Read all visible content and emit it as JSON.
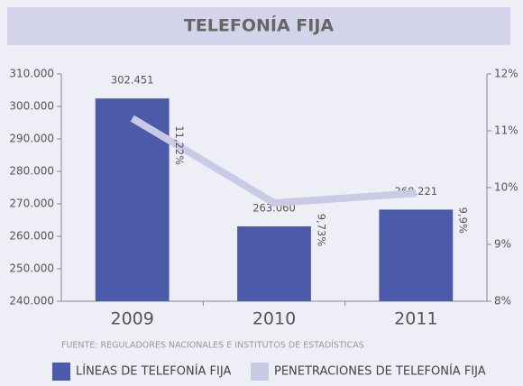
{
  "chart_data": {
    "type": "bar",
    "title": "TELEFONÍA FIJA",
    "categories": [
      "2009",
      "2010",
      "2011"
    ],
    "series": [
      {
        "name": "LÍNEAS DE TELEFONÍA FIJA",
        "color": "#4b5aa9",
        "values": [
          302451,
          263060,
          268221
        ],
        "value_labels": [
          "302.451",
          "263.060",
          "268.221"
        ]
      },
      {
        "name": "PENETRACIONES DE TELEFONÍA FIJA",
        "color": "#c9cae5",
        "type": "line",
        "axis": "y2",
        "values": [
          11.22,
          9.73,
          9.9
        ],
        "value_labels": [
          "11,22%",
          "9,73%",
          "9,9%"
        ]
      }
    ],
    "ylim": [
      240000,
      310000
    ],
    "yticks": [
      {
        "value": 240000,
        "label": "240.000"
      },
      {
        "value": 250000,
        "label": "250.000"
      },
      {
        "value": 260000,
        "label": "260.000"
      },
      {
        "value": 270000,
        "label": "270.000"
      },
      {
        "value": 280000,
        "label": "280.000"
      },
      {
        "value": 290000,
        "label": "290.000"
      },
      {
        "value": 300000,
        "label": "300.000"
      },
      {
        "value": 310000,
        "label": "310.000"
      }
    ],
    "y2lim": [
      8,
      12
    ],
    "y2ticks": [
      {
        "value": 8,
        "label": "8%"
      },
      {
        "value": 9,
        "label": "9%"
      },
      {
        "value": 10,
        "label": "10%"
      },
      {
        "value": 11,
        "label": "11%"
      },
      {
        "value": 12,
        "label": "12%"
      }
    ],
    "source": "FUENTE: REGULADORES NACIONALES E INSTITUTOS DE ESTADÍSTICAS"
  }
}
